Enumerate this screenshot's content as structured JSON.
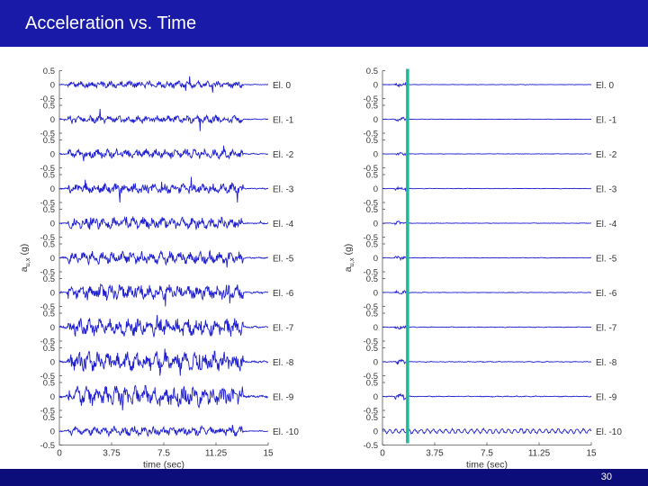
{
  "slide": {
    "title": "Acceleration vs. Time",
    "page_number": "30"
  },
  "colors": {
    "title_bar": "#1a1aa8",
    "footer_bar": "#0c0c7a",
    "trace": "#1f1fd0",
    "marker": "#22b89a"
  },
  "chart_data": [
    {
      "type": "line",
      "panel": "left",
      "title": "",
      "xlabel": "time (sec)",
      "ylabel": "a",
      "ylabel_sub": "u,x",
      "ylabel_unit": " (g)",
      "xlim": [
        0,
        15
      ],
      "xticks": [
        0,
        3.75,
        7.5,
        11.25,
        15
      ],
      "xtick_labels": [
        "0",
        "3.75",
        "7.5",
        "11.25",
        "15"
      ],
      "ylim": [
        -0.5,
        0.5
      ],
      "ytick_labels": [
        "0.5",
        "0",
        "-0.5"
      ],
      "series": [
        {
          "name": "El. 0",
          "amplitude": 0.12
        },
        {
          "name": "El. -1",
          "amplitude": 0.13
        },
        {
          "name": "El. -2",
          "amplitude": 0.16
        },
        {
          "name": "El. -3",
          "amplitude": 0.18
        },
        {
          "name": "El. -4",
          "amplitude": 0.2
        },
        {
          "name": "El. -5",
          "amplitude": 0.22
        },
        {
          "name": "El. -6",
          "amplitude": 0.26
        },
        {
          "name": "El. -7",
          "amplitude": 0.3
        },
        {
          "name": "El. -8",
          "amplitude": 0.34
        },
        {
          "name": "El. -9",
          "amplitude": 0.35
        },
        {
          "name": "El. -10",
          "amplitude": 0.16
        }
      ]
    },
    {
      "type": "line",
      "panel": "right",
      "title": "",
      "xlabel": "time (sec)",
      "ylabel": "a",
      "ylabel_sub": "u,x",
      "ylabel_unit": " (g)",
      "xlim": [
        0,
        15
      ],
      "xticks": [
        0,
        3.75,
        7.5,
        11.25,
        15
      ],
      "xtick_labels": [
        "0",
        "3.75",
        "7.5",
        "11.25",
        "15"
      ],
      "ylim": [
        -0.5,
        0.5
      ],
      "ytick_labels": [
        "0.5",
        "0",
        "-0.5"
      ],
      "marker_time": 1.8,
      "series": [
        {
          "name": "El.  0",
          "amplitude": 0.015
        },
        {
          "name": "El. -1",
          "amplitude": 0.015
        },
        {
          "name": "El. -2",
          "amplitude": 0.015
        },
        {
          "name": "El. -3",
          "amplitude": 0.016
        },
        {
          "name": "El. -4",
          "amplitude": 0.016
        },
        {
          "name": "El. -5",
          "amplitude": 0.017
        },
        {
          "name": "El. -6",
          "amplitude": 0.018
        },
        {
          "name": "El. -7",
          "amplitude": 0.02
        },
        {
          "name": "El. -8",
          "amplitude": 0.024
        },
        {
          "name": "El. -9",
          "amplitude": 0.028
        },
        {
          "name": "El. -10",
          "amplitude": 0.08
        }
      ]
    }
  ]
}
